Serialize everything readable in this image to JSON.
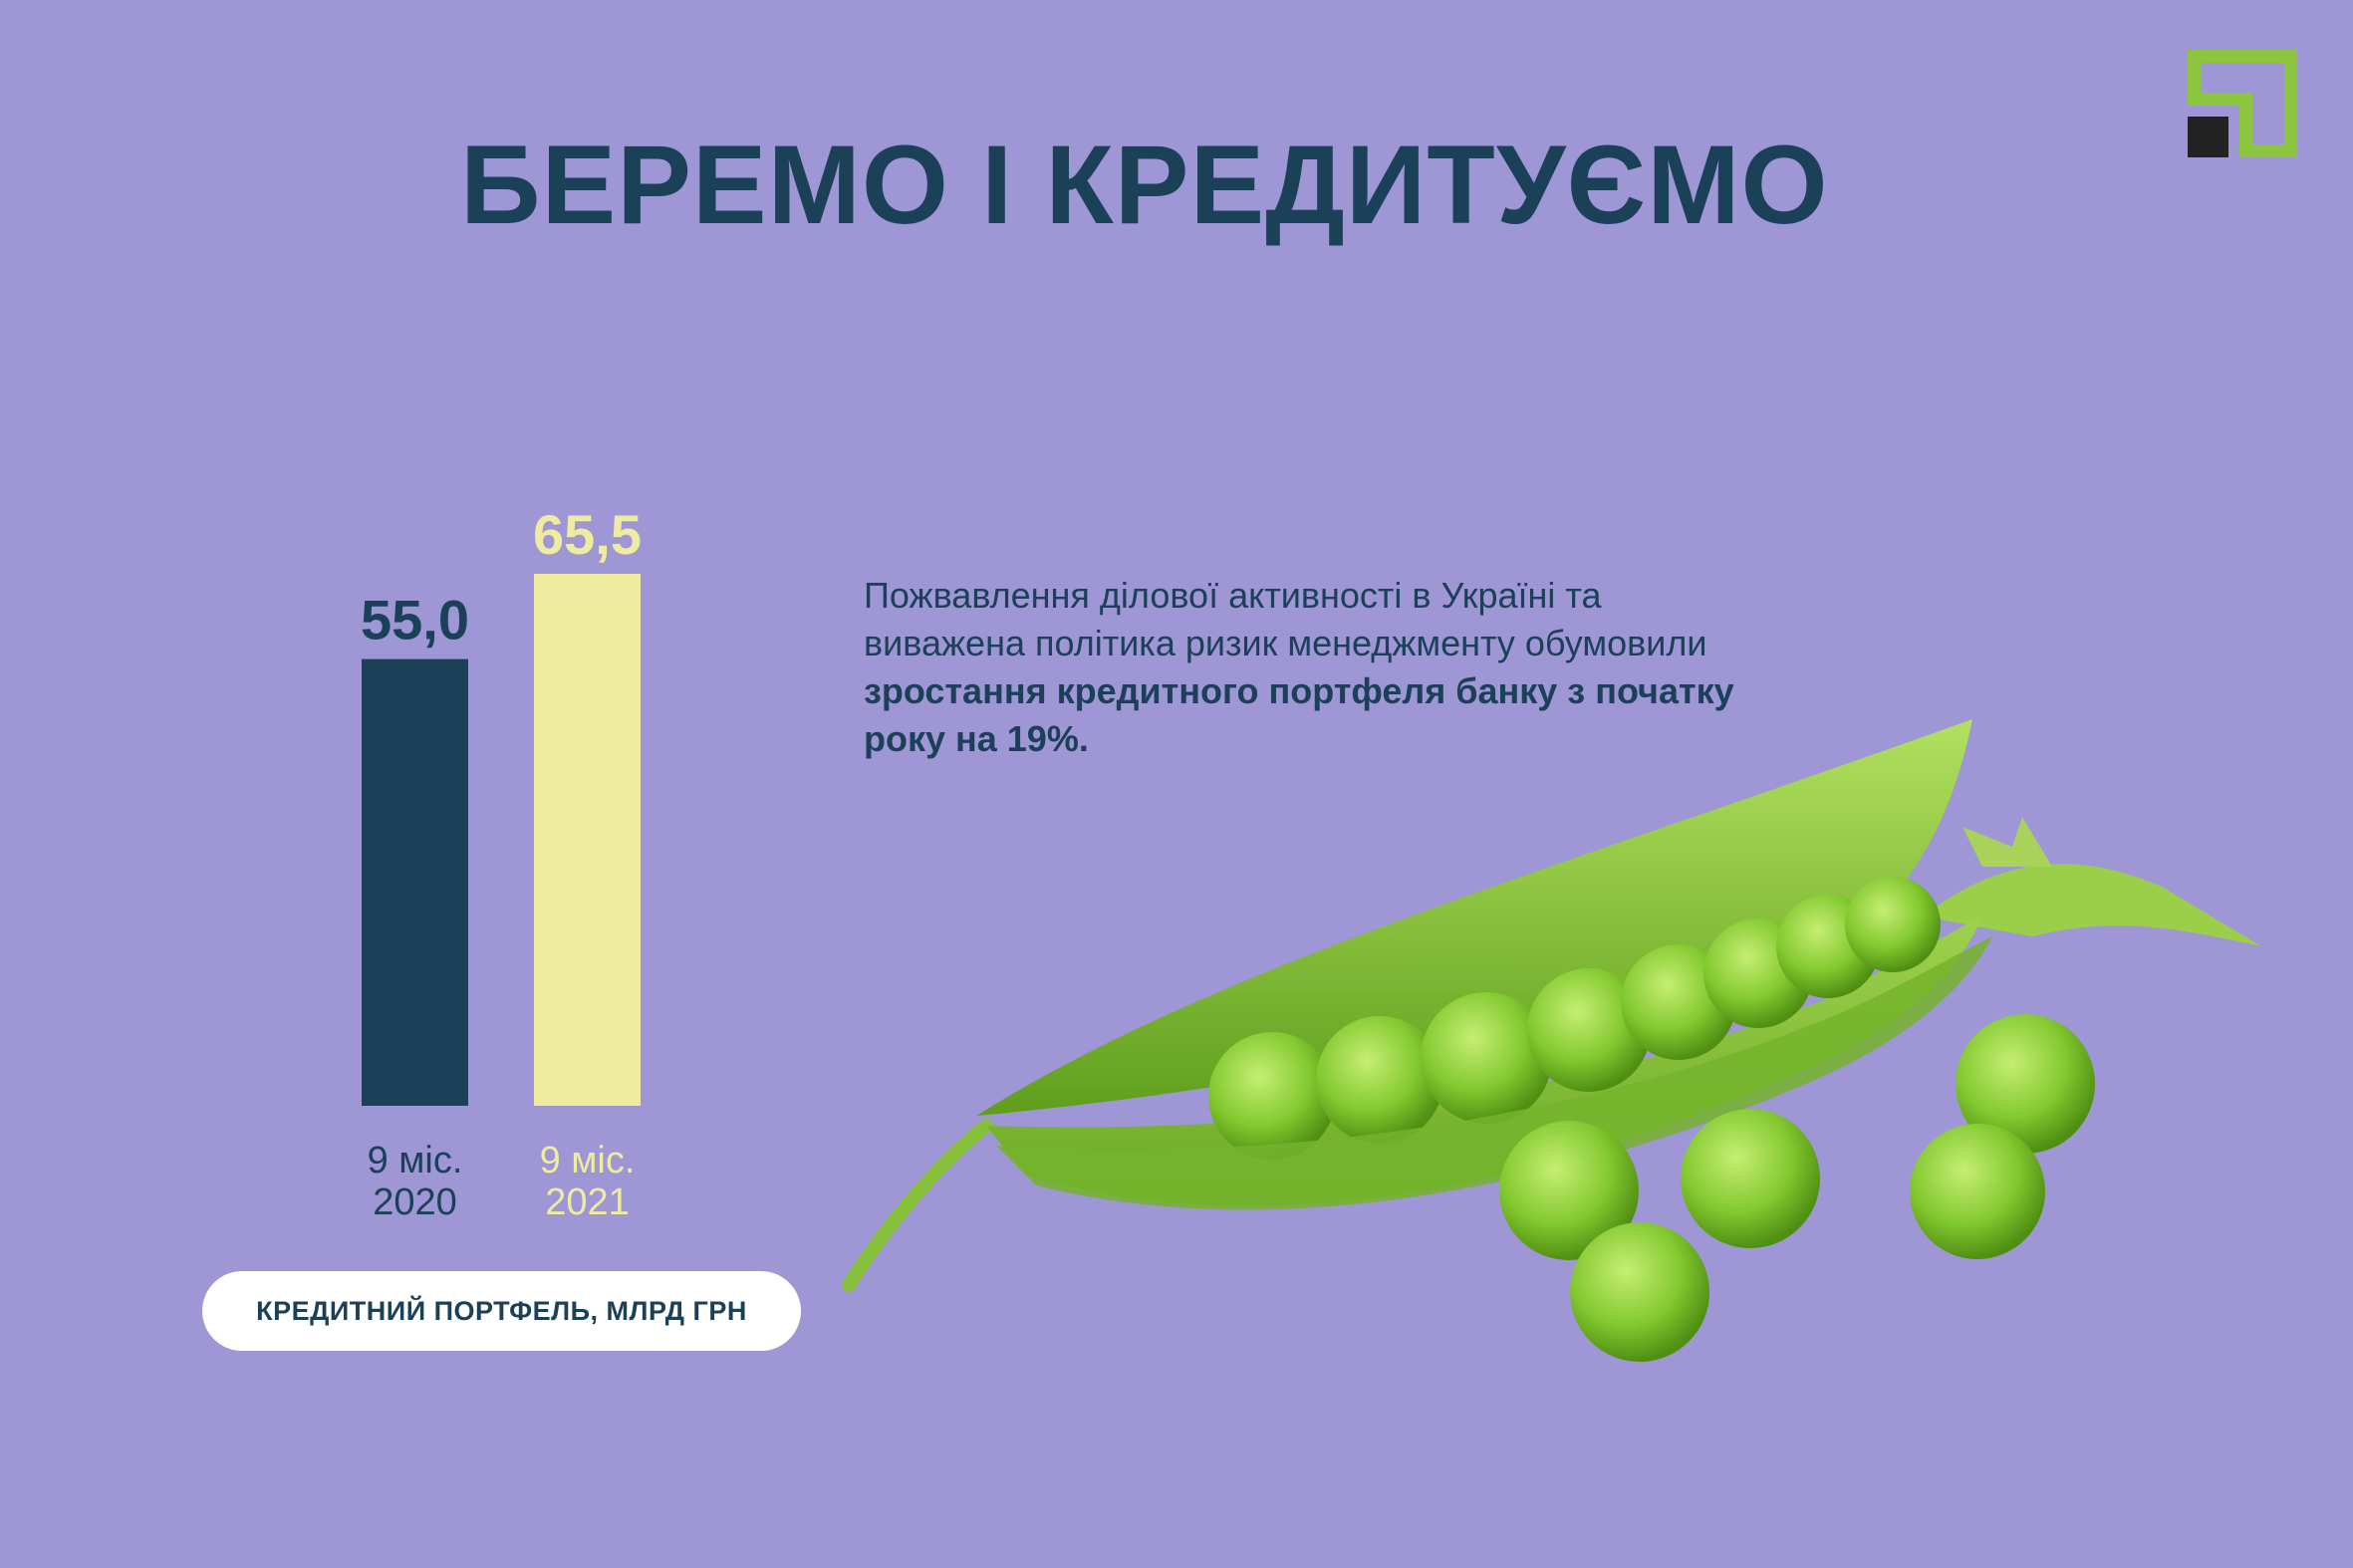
{
  "title": "БЕРЕМО І КРЕДИТУЄМО",
  "description": {
    "part1": "Пожвавлення ділової активності в Україні та виважена політика ризик менеджменту обумовили ",
    "part2_bold": "зростання кредитного портфеля банку з початку року на 19%."
  },
  "caption": "КРЕДИТНИЙ ПОРТФЕЛЬ, МЛРД ГРН",
  "colors": {
    "background": "#9f96d5",
    "navy": "#1b4159",
    "yellow": "#efeb9f",
    "logo_green": "#8cc63f"
  },
  "icons": [
    "bank-logo-icon",
    "pea-pod-illustration"
  ],
  "chart_data": {
    "type": "bar",
    "title": "",
    "xlabel": "",
    "ylabel": "",
    "ylim": [
      0,
      65.5
    ],
    "categories": [
      "9 міс.\n2020",
      "9 міс.\n2021"
    ],
    "category_lines": [
      [
        "9 міс.",
        "2020"
      ],
      [
        "9 міс.",
        "2021"
      ]
    ],
    "values": [
      55.0,
      65.5
    ],
    "value_labels": [
      "55,0",
      "65,5"
    ],
    "bar_colors": [
      "#1b4159",
      "#efeb9f"
    ],
    "grid": false,
    "legend": "none"
  }
}
